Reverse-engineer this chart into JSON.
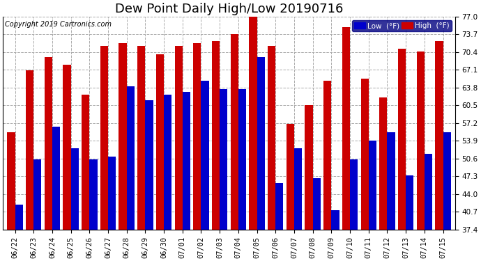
{
  "title": "Dew Point Daily High/Low 20190716",
  "copyright": "Copyright 2019 Cartronics.com",
  "dates": [
    "06/22",
    "06/23",
    "06/24",
    "06/25",
    "06/26",
    "06/27",
    "06/28",
    "06/29",
    "06/30",
    "07/01",
    "07/02",
    "07/03",
    "07/04",
    "07/05",
    "07/06",
    "07/07",
    "07/08",
    "07/09",
    "07/10",
    "07/11",
    "07/12",
    "07/13",
    "07/14",
    "07/15"
  ],
  "low": [
    42.0,
    50.5,
    56.5,
    52.5,
    50.5,
    51.0,
    64.0,
    61.5,
    62.5,
    63.0,
    65.0,
    63.5,
    63.5,
    69.5,
    46.0,
    52.5,
    47.0,
    41.0,
    50.5,
    54.0,
    55.5,
    47.5,
    51.5,
    55.5
  ],
  "high": [
    55.5,
    67.0,
    69.5,
    68.0,
    62.5,
    71.5,
    72.0,
    71.5,
    70.0,
    71.5,
    72.0,
    72.5,
    73.7,
    77.0,
    71.5,
    57.0,
    60.5,
    65.0,
    75.0,
    65.5,
    62.0,
    71.0,
    70.5,
    72.5
  ],
  "low_color": "#0000cc",
  "high_color": "#cc0000",
  "bg_color": "#ffffff",
  "grid_color": "#aaaaaa",
  "ylim_min": 37.4,
  "ylim_max": 77.0,
  "yticks": [
    37.4,
    40.7,
    44.0,
    47.3,
    50.6,
    53.9,
    57.2,
    60.5,
    63.8,
    67.1,
    70.4,
    73.7,
    77.0
  ],
  "title_fontsize": 13,
  "tick_fontsize": 7.5,
  "legend_low_label": "Low  (°F)",
  "legend_high_label": "High  (°F)"
}
